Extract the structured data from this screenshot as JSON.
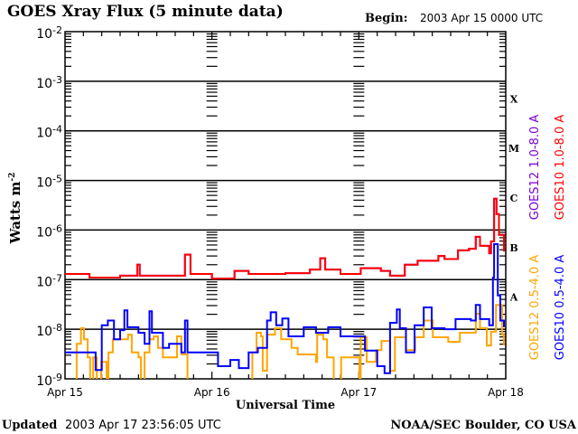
{
  "chart_data": {
    "type": "line",
    "title": "GOES Xray Flux (5 minute data)",
    "begin_label": "Begin:",
    "begin_value": "2003 Apr 15 0000 UTC",
    "xlabel": "Universal Time",
    "ylabel": "Watts m",
    "ylabel_sup": "-2",
    "y_scale": "log",
    "ylim": [
      1e-09,
      0.01
    ],
    "xlim": [
      "2003-04-15T00:00",
      "2003-04-18T00:00"
    ],
    "y_ticks": [
      {
        "base": "10",
        "exp": "-9"
      },
      {
        "base": "10",
        "exp": "-8"
      },
      {
        "base": "10",
        "exp": "-7"
      },
      {
        "base": "10",
        "exp": "-6"
      },
      {
        "base": "10",
        "exp": "-5"
      },
      {
        "base": "10",
        "exp": "-4"
      },
      {
        "base": "10",
        "exp": "-3"
      },
      {
        "base": "10",
        "exp": "-2"
      }
    ],
    "x_ticks": [
      "Apr 15",
      "Apr 16",
      "Apr 17",
      "Apr 18"
    ],
    "flare_classes": [
      {
        "label": "A",
        "flux": 1e-08
      },
      {
        "label": "B",
        "flux": 1e-07
      },
      {
        "label": "C",
        "flux": 1e-06
      },
      {
        "label": "M",
        "flux": 1e-05
      },
      {
        "label": "X",
        "flux": 0.0001
      }
    ],
    "grid": "horizontal lines at each decade",
    "legend_placement": "right, rotated",
    "series": [
      {
        "name": "GOES12 1.0-8.0 A",
        "color": "#7b00d4",
        "points": [
          [
            "2003-04-15T00:00",
            1.3e-07
          ],
          [
            "2003-04-15T04:00",
            1.1e-07
          ],
          [
            "2003-04-15T09:00",
            1.2e-07
          ],
          [
            "2003-04-15T11:48",
            2e-07
          ],
          [
            "2003-04-15T12:12",
            1.2e-07
          ],
          [
            "2003-04-15T16:00",
            1.2e-07
          ],
          [
            "2003-04-15T19:36",
            3.2e-07
          ],
          [
            "2003-04-15T20:30",
            1.3e-07
          ],
          [
            "2003-04-16T00:00",
            1.05e-07
          ],
          [
            "2003-04-16T03:42",
            1.5e-07
          ],
          [
            "2003-04-16T06:00",
            1.3e-07
          ],
          [
            "2003-04-16T12:00",
            1.35e-07
          ],
          [
            "2003-04-16T16:00",
            1.6e-07
          ],
          [
            "2003-04-16T17:42",
            2.7e-07
          ],
          [
            "2003-04-16T18:30",
            1.6e-07
          ],
          [
            "2003-04-16T21:00",
            1.3e-07
          ],
          [
            "2003-04-17T00:18",
            1.7e-07
          ],
          [
            "2003-04-17T03:36",
            1.5e-07
          ],
          [
            "2003-04-17T05:06",
            1.2e-07
          ],
          [
            "2003-04-17T07:30",
            2e-07
          ],
          [
            "2003-04-17T09:36",
            2.4e-07
          ],
          [
            "2003-04-17T12:00",
            2.4e-07
          ],
          [
            "2003-04-17T13:00",
            3e-07
          ],
          [
            "2003-04-17T14:00",
            2.6e-07
          ],
          [
            "2003-04-17T16:12",
            3.9e-07
          ],
          [
            "2003-04-17T18:00",
            4.2e-07
          ],
          [
            "2003-04-17T19:06",
            7.3e-07
          ],
          [
            "2003-04-17T19:48",
            4.8e-07
          ],
          [
            "2003-04-17T21:18",
            3.4e-07
          ],
          [
            "2003-04-17T21:36",
            5.9e-07
          ],
          [
            "2003-04-17T22:06",
            4.3e-06
          ],
          [
            "2003-04-17T22:30",
            2.1e-06
          ],
          [
            "2003-04-17T22:54",
            8e-07
          ],
          [
            "2003-04-17T23:42",
            3.7e-07
          ]
        ]
      },
      {
        "name": "GOES10 1.0-8.0 A",
        "color": "#ff0000",
        "points": [
          [
            "2003-04-15T00:00",
            1.3e-07
          ],
          [
            "2003-04-15T04:00",
            1.1e-07
          ],
          [
            "2003-04-15T09:00",
            1.2e-07
          ],
          [
            "2003-04-15T11:48",
            2e-07
          ],
          [
            "2003-04-15T12:12",
            1.2e-07
          ],
          [
            "2003-04-15T16:00",
            1.2e-07
          ],
          [
            "2003-04-15T19:36",
            3.2e-07
          ],
          [
            "2003-04-15T20:30",
            1.3e-07
          ],
          [
            "2003-04-16T00:00",
            1.05e-07
          ],
          [
            "2003-04-16T03:42",
            1.5e-07
          ],
          [
            "2003-04-16T06:00",
            1.3e-07
          ],
          [
            "2003-04-16T12:00",
            1.35e-07
          ],
          [
            "2003-04-16T16:00",
            1.6e-07
          ],
          [
            "2003-04-16T17:42",
            2.7e-07
          ],
          [
            "2003-04-16T18:30",
            1.6e-07
          ],
          [
            "2003-04-16T21:00",
            1.3e-07
          ],
          [
            "2003-04-17T00:18",
            1.7e-07
          ],
          [
            "2003-04-17T03:36",
            1.5e-07
          ],
          [
            "2003-04-17T05:06",
            1.2e-07
          ],
          [
            "2003-04-17T07:30",
            2e-07
          ],
          [
            "2003-04-17T09:36",
            2.4e-07
          ],
          [
            "2003-04-17T12:00",
            2.4e-07
          ],
          [
            "2003-04-17T13:00",
            3e-07
          ],
          [
            "2003-04-17T14:00",
            2.6e-07
          ],
          [
            "2003-04-17T16:12",
            3.9e-07
          ],
          [
            "2003-04-17T18:00",
            4.2e-07
          ],
          [
            "2003-04-17T19:06",
            7.3e-07
          ],
          [
            "2003-04-17T19:48",
            4.8e-07
          ],
          [
            "2003-04-17T21:18",
            3.4e-07
          ],
          [
            "2003-04-17T21:36",
            5.9e-07
          ],
          [
            "2003-04-17T22:06",
            4.3e-06
          ],
          [
            "2003-04-17T22:30",
            2.1e-06
          ],
          [
            "2003-04-17T22:54",
            8e-07
          ],
          [
            "2003-04-17T23:42",
            3.7e-07
          ]
        ]
      },
      {
        "name": "GOES12 0.5-4.0 A",
        "color": "#ffa500",
        "points": [
          [
            "2003-04-15T00:00",
            8e-10
          ],
          [
            "2003-04-15T01:30",
            8e-10
          ],
          [
            "2003-04-15T01:54",
            5.1e-09
          ],
          [
            "2003-04-15T02:36",
            1.05e-08
          ],
          [
            "2003-04-15T03:06",
            6.3e-09
          ],
          [
            "2003-04-15T03:42",
            2.7e-09
          ],
          [
            "2003-04-15T04:06",
            8e-10
          ],
          [
            "2003-04-15T04:36",
            2.7e-09
          ],
          [
            "2003-04-15T05:12",
            8e-10
          ],
          [
            "2003-04-15T05:54",
            2.2e-09
          ],
          [
            "2003-04-15T06:48",
            8e-10
          ],
          [
            "2003-04-15T07:06",
            3.4e-09
          ],
          [
            "2003-04-15T07:48",
            6.3e-09
          ],
          [
            "2003-04-15T09:42",
            6.3e-09
          ],
          [
            "2003-04-15T10:18",
            7.8e-09
          ],
          [
            "2003-04-15T10:54",
            3.4e-09
          ],
          [
            "2003-04-15T12:00",
            2.7e-09
          ],
          [
            "2003-04-15T12:24",
            8e-10
          ],
          [
            "2003-04-15T13:00",
            3.4e-09
          ],
          [
            "2003-04-15T13:48",
            6.3e-09
          ],
          [
            "2003-04-15T14:30",
            7.2e-09
          ],
          [
            "2003-04-15T15:12",
            4.2e-09
          ],
          [
            "2003-04-15T16:00",
            2.7e-09
          ],
          [
            "2003-04-15T17:48",
            2.7e-09
          ],
          [
            "2003-04-15T18:18",
            7.2e-09
          ],
          [
            "2003-04-15T18:42",
            7.2e-09
          ],
          [
            "2003-04-15T19:00",
            3.1e-09
          ],
          [
            "2003-04-15T20:00",
            8e-10
          ],
          [
            "2003-04-16T05:24",
            8e-10
          ],
          [
            "2003-04-16T06:36",
            3.4e-09
          ],
          [
            "2003-04-16T07:18",
            8.5e-09
          ],
          [
            "2003-04-16T08:00",
            7.2e-09
          ],
          [
            "2003-04-16T08:18",
            1.45e-09
          ],
          [
            "2003-04-16T09:00",
            7.8e-09
          ],
          [
            "2003-04-16T10:18",
            1.05e-08
          ],
          [
            "2003-04-16T11:18",
            6.3e-09
          ],
          [
            "2003-04-16T13:00",
            4.2e-09
          ],
          [
            "2003-04-16T14:00",
            3.1e-09
          ],
          [
            "2003-04-16T16:00",
            3.1e-09
          ],
          [
            "2003-04-16T17:00",
            2.2e-09
          ],
          [
            "2003-04-16T17:12",
            7.8e-09
          ],
          [
            "2003-04-16T18:12",
            6.3e-09
          ],
          [
            "2003-04-16T18:48",
            2.7e-09
          ],
          [
            "2003-04-16T19:54",
            8e-10
          ],
          [
            "2003-04-16T21:06",
            2.7e-09
          ],
          [
            "2003-04-16T23:30",
            2.7e-09
          ],
          [
            "2003-04-17T00:06",
            8e-10
          ],
          [
            "2003-04-17T00:18",
            6.9e-09
          ],
          [
            "2003-04-17T01:18",
            2.2e-09
          ],
          [
            "2003-04-17T02:48",
            3.8e-09
          ],
          [
            "2003-04-17T03:42",
            5.8e-09
          ],
          [
            "2003-04-17T05:06",
            1.45e-09
          ],
          [
            "2003-04-17T05:54",
            6.9e-09
          ],
          [
            "2003-04-17T07:42",
            3.8e-09
          ],
          [
            "2003-04-17T09:12",
            6.9e-09
          ],
          [
            "2003-04-17T10:36",
            1.5e-08
          ],
          [
            "2003-04-17T12:06",
            6.9e-09
          ],
          [
            "2003-04-17T14:36",
            5.6e-09
          ],
          [
            "2003-04-17T16:30",
            8.5e-09
          ],
          [
            "2003-04-17T18:24",
            8.5e-09
          ],
          [
            "2003-04-17T19:06",
            2.05e-08
          ],
          [
            "2003-04-17T19:48",
            1.05e-08
          ],
          [
            "2003-04-17T20:54",
            4.7e-09
          ],
          [
            "2003-04-17T21:36",
            8.9e-09
          ],
          [
            "2003-04-17T22:24",
            3.1e-08
          ],
          [
            "2003-04-17T23:24",
            7.8e-09
          ],
          [
            "2003-04-17T23:42",
            4.7e-09
          ]
        ]
      },
      {
        "name": "GOES10 0.5-4.0 A",
        "color": "#0000ff",
        "points": [
          [
            "2003-04-15T00:00",
            3.4e-09
          ],
          [
            "2003-04-15T04:48",
            3.4e-09
          ],
          [
            "2003-04-15T05:00",
            1.5e-09
          ],
          [
            "2003-04-15T05:48",
            1.5e-09
          ],
          [
            "2003-04-15T06:00",
            1.2e-08
          ],
          [
            "2003-04-15T07:00",
            1.5e-08
          ],
          [
            "2003-04-15T08:00",
            6.3e-09
          ],
          [
            "2003-04-15T09:00",
            9.6e-09
          ],
          [
            "2003-04-15T09:42",
            2.4e-08
          ],
          [
            "2003-04-15T10:12",
            1.1e-08
          ],
          [
            "2003-04-15T12:00",
            8.5e-09
          ],
          [
            "2003-04-15T13:00",
            5.1e-09
          ],
          [
            "2003-04-15T13:48",
            2.3e-08
          ],
          [
            "2003-04-15T14:12",
            8.5e-09
          ],
          [
            "2003-04-15T16:00",
            4.2e-09
          ],
          [
            "2003-04-15T17:00",
            5.1e-09
          ],
          [
            "2003-04-15T19:00",
            3.4e-09
          ],
          [
            "2003-04-15T19:36",
            1.5e-08
          ],
          [
            "2003-04-15T20:00",
            3.4e-09
          ],
          [
            "2003-04-15T23:30",
            3.4e-09
          ],
          [
            "2003-04-16T01:00",
            1.8e-09
          ],
          [
            "2003-04-16T03:00",
            2.4e-09
          ],
          [
            "2003-04-16T04:24",
            1.65e-09
          ],
          [
            "2003-04-16T06:00",
            3.4e-09
          ],
          [
            "2003-04-16T07:30",
            4.2e-09
          ],
          [
            "2003-04-16T09:00",
            1.5e-08
          ],
          [
            "2003-04-16T09:36",
            2.2e-08
          ],
          [
            "2003-04-16T10:30",
            1.2e-08
          ],
          [
            "2003-04-16T11:30",
            1.65e-08
          ],
          [
            "2003-04-16T12:30",
            7.2e-09
          ],
          [
            "2003-04-16T15:00",
            1.1e-08
          ],
          [
            "2003-04-16T17:00",
            8.5e-09
          ],
          [
            "2003-04-16T19:00",
            1.1e-08
          ],
          [
            "2003-04-16T21:00",
            7.2e-09
          ],
          [
            "2003-04-17T00:00",
            7.2e-09
          ],
          [
            "2003-04-17T01:00",
            3.7e-09
          ],
          [
            "2003-04-17T03:00",
            1.8e-09
          ],
          [
            "2003-04-17T04:12",
            1.3e-09
          ],
          [
            "2003-04-17T05:06",
            1.35e-08
          ],
          [
            "2003-04-17T06:12",
            2.5e-08
          ],
          [
            "2003-04-17T06:42",
            1.05e-08
          ],
          [
            "2003-04-17T07:42",
            3.4e-09
          ],
          [
            "2003-04-17T09:06",
            1.2e-08
          ],
          [
            "2003-04-17T10:36",
            2.75e-08
          ],
          [
            "2003-04-17T11:54",
            1.05e-08
          ],
          [
            "2003-04-17T14:00",
            1e-08
          ],
          [
            "2003-04-17T15:48",
            1.6e-08
          ],
          [
            "2003-04-17T18:18",
            1.5e-08
          ],
          [
            "2003-04-17T19:06",
            3.1e-08
          ],
          [
            "2003-04-17T19:48",
            1.6e-08
          ],
          [
            "2003-04-17T21:18",
            1.2e-08
          ],
          [
            "2003-04-17T21:54",
            1.1e-07
          ],
          [
            "2003-04-17T22:06",
            5.2e-07
          ],
          [
            "2003-04-17T22:42",
            4.8e-08
          ],
          [
            "2003-04-17T23:06",
            1.5e-08
          ],
          [
            "2003-04-17T23:42",
            1.1e-08
          ]
        ]
      }
    ]
  },
  "footer": {
    "updated_label": "Updated",
    "updated_value": "2003 Apr 17 23:56:05 UTC",
    "credit": "NOAA/SEC Boulder, CO USA"
  }
}
